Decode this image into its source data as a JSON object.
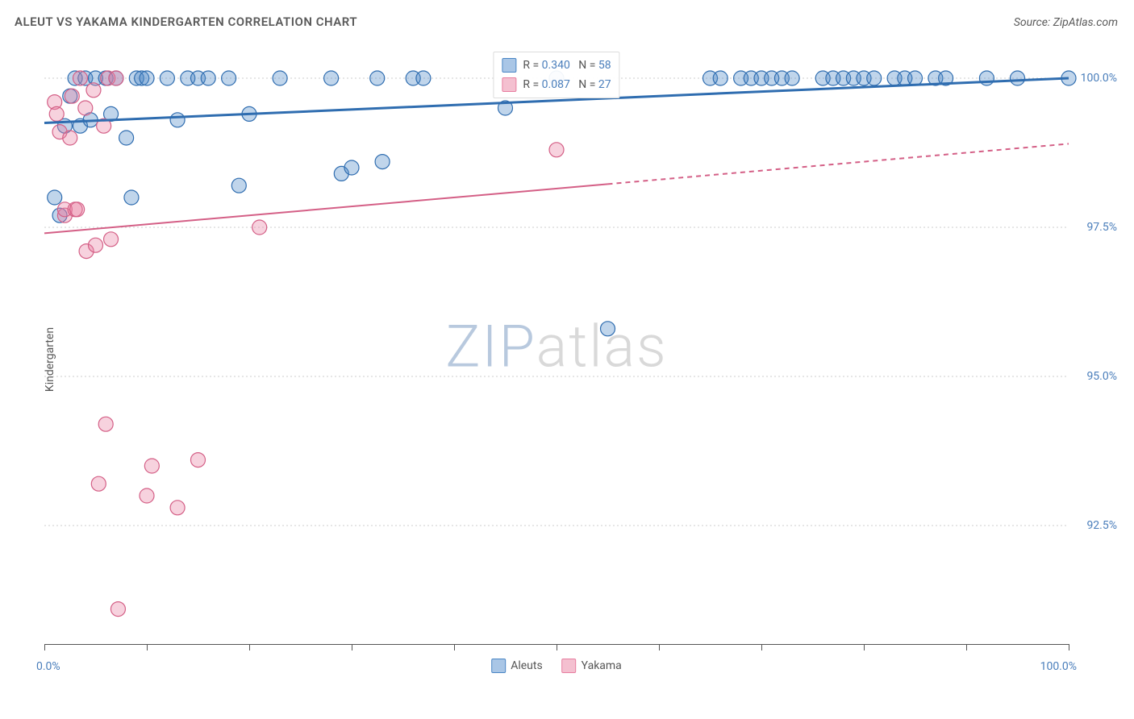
{
  "title": "ALEUT VS YAKAMA KINDERGARTEN CORRELATION CHART",
  "source": "Source: ZipAtlas.com",
  "ylabel": "Kindergarten",
  "watermark_a": "ZIP",
  "watermark_b": "atlas",
  "chart": {
    "type": "scatter",
    "background_color": "#ffffff",
    "grid_color": "#cccccc",
    "axis_color": "#555555",
    "tick_label_color": "#4a7ebb",
    "label_fontsize": 14,
    "title_fontsize": 15,
    "title_color": "#5a5a5a",
    "xlim": [
      0,
      100
    ],
    "ylim": [
      90.5,
      100.5
    ],
    "x_tick_label_min": "0.0%",
    "x_tick_label_max": "100.0%",
    "x_tick_positions": [
      0,
      10,
      20,
      30,
      40,
      50,
      60,
      70,
      80,
      90,
      100
    ],
    "y_ticks": [
      {
        "value": 100.0,
        "label": "100.0%"
      },
      {
        "value": 97.5,
        "label": "97.5%"
      },
      {
        "value": 95.0,
        "label": "95.0%"
      },
      {
        "value": 92.5,
        "label": "92.5%"
      }
    ],
    "marker_radius": 9,
    "marker_fill_opacity": 0.35,
    "marker_stroke_width": 1.2,
    "series": [
      {
        "name": "Aleuts",
        "color": "#4a86c5",
        "stroke": "#2f6db0",
        "points": [
          [
            1,
            98.0
          ],
          [
            1.5,
            97.7
          ],
          [
            2,
            99.2
          ],
          [
            2.5,
            99.7
          ],
          [
            3,
            100
          ],
          [
            3.5,
            99.2
          ],
          [
            4,
            100
          ],
          [
            4.5,
            99.3
          ],
          [
            5,
            100
          ],
          [
            6,
            100
          ],
          [
            6.5,
            99.4
          ],
          [
            7,
            100
          ],
          [
            8,
            99.0
          ],
          [
            8.5,
            98.0
          ],
          [
            9,
            100
          ],
          [
            9.5,
            100
          ],
          [
            10,
            100
          ],
          [
            12,
            100
          ],
          [
            13,
            99.3
          ],
          [
            14,
            100
          ],
          [
            15,
            100
          ],
          [
            16,
            100
          ],
          [
            18,
            100
          ],
          [
            19,
            98.2
          ],
          [
            20,
            99.4
          ],
          [
            23,
            100
          ],
          [
            28,
            100
          ],
          [
            29,
            98.4
          ],
          [
            30,
            98.5
          ],
          [
            32.5,
            100
          ],
          [
            33,
            98.6
          ],
          [
            36,
            100
          ],
          [
            37,
            100
          ],
          [
            45,
            99.5
          ],
          [
            50,
            100
          ],
          [
            55,
            95.8
          ],
          [
            65,
            100
          ],
          [
            66,
            100
          ],
          [
            68,
            100
          ],
          [
            69,
            100
          ],
          [
            70,
            100
          ],
          [
            71,
            100
          ],
          [
            72,
            100
          ],
          [
            73,
            100
          ],
          [
            76,
            100
          ],
          [
            77,
            100
          ],
          [
            78,
            100
          ],
          [
            79,
            100
          ],
          [
            80,
            100
          ],
          [
            81,
            100
          ],
          [
            83,
            100
          ],
          [
            84,
            100
          ],
          [
            85,
            100
          ],
          [
            87,
            100
          ],
          [
            88,
            100
          ],
          [
            92,
            100
          ],
          [
            95,
            100
          ],
          [
            100,
            100
          ]
        ],
        "trend": {
          "y_at_x0": 99.25,
          "y_at_x100": 100.0,
          "solid_until_x": 100,
          "stroke_width": 3
        },
        "stats": {
          "R": "0.340",
          "N": "58"
        }
      },
      {
        "name": "Yakama",
        "color": "#e87ea0",
        "stroke": "#d45f86",
        "points": [
          [
            1,
            99.6
          ],
          [
            1.2,
            99.4
          ],
          [
            1.5,
            99.1
          ],
          [
            2,
            97.7
          ],
          [
            2,
            97.8
          ],
          [
            2.5,
            99.0
          ],
          [
            2.7,
            99.7
          ],
          [
            3,
            97.8
          ],
          [
            3.2,
            97.8
          ],
          [
            3.5,
            100
          ],
          [
            4,
            99.5
          ],
          [
            4.1,
            97.1
          ],
          [
            4.8,
            99.8
          ],
          [
            5,
            97.2
          ],
          [
            5.3,
            93.2
          ],
          [
            5.8,
            99.2
          ],
          [
            6,
            94.2
          ],
          [
            6.2,
            100
          ],
          [
            6.5,
            97.3
          ],
          [
            7,
            100
          ],
          [
            7.2,
            91.1
          ],
          [
            10,
            93.0
          ],
          [
            10.5,
            93.5
          ],
          [
            13,
            92.8
          ],
          [
            15,
            93.6
          ],
          [
            21,
            97.5
          ],
          [
            50,
            98.8
          ]
        ],
        "trend": {
          "y_at_x0": 97.4,
          "y_at_x100": 98.9,
          "solid_until_x": 55,
          "stroke_width": 2
        },
        "stats": {
          "R": "0.087",
          "N": "27"
        }
      }
    ],
    "bottom_legend": [
      {
        "label": "Aleuts",
        "fill": "#a9c6e6",
        "border": "#4a86c5"
      },
      {
        "label": "Yakama",
        "fill": "#f4c0d0",
        "border": "#e87ea0"
      }
    ],
    "top_legend_rows": [
      {
        "swatch_fill": "#a9c6e6",
        "swatch_border": "#4a86c5",
        "text_prefix": "R = ",
        "r": "0.340",
        "mid": "   N = ",
        "n": "58"
      },
      {
        "swatch_fill": "#f4c0d0",
        "swatch_border": "#e87ea0",
        "text_prefix": "R = ",
        "r": "0.087",
        "mid": "   N = ",
        "n": "27"
      }
    ]
  }
}
